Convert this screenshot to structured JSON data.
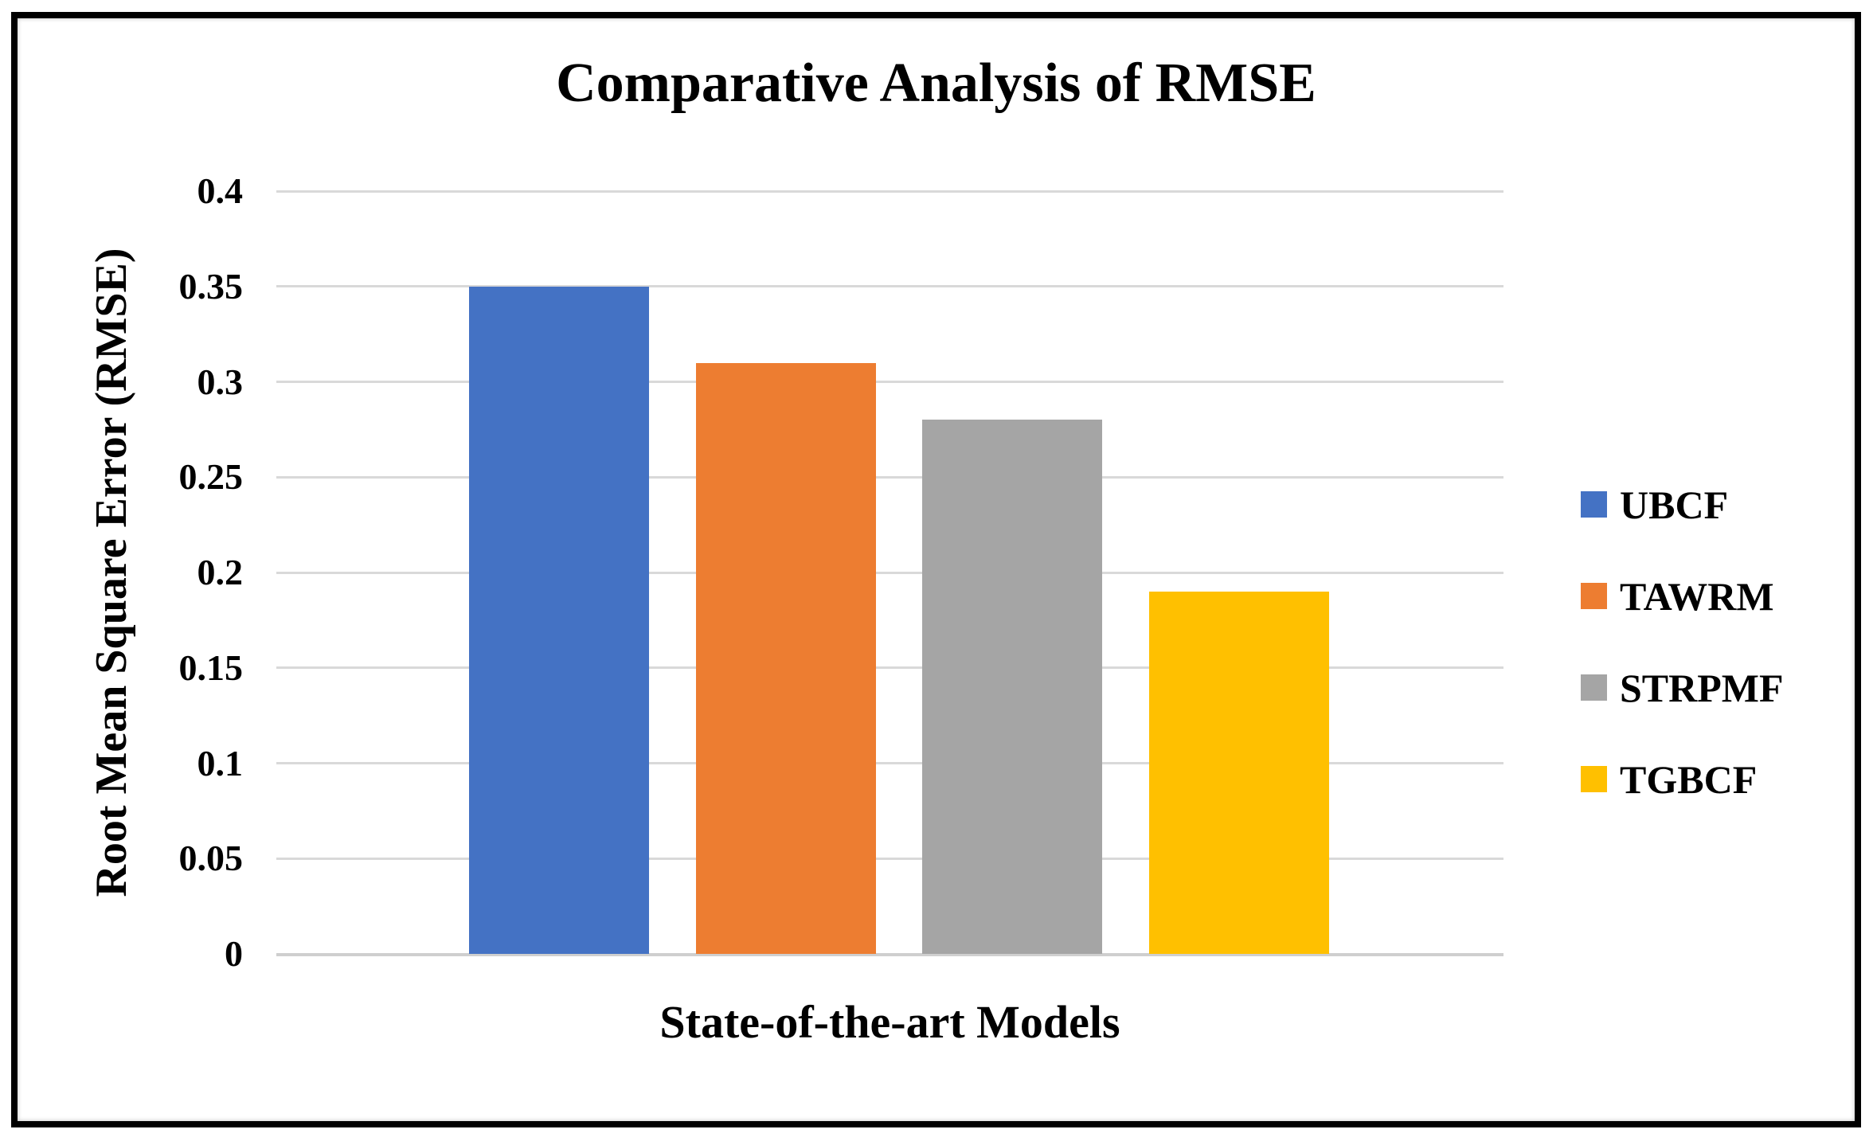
{
  "title": "Comparative Analysis of RMSE",
  "chart_data": {
    "type": "bar",
    "title": "Comparative Analysis of RMSE",
    "xlabel": "State-of-the-art Models",
    "ylabel": "Root Mean Square Error (RMSE)",
    "categories": [
      "UBCF",
      "TAWRM",
      "STRPMF",
      "TGBCF"
    ],
    "values": [
      0.35,
      0.31,
      0.28,
      0.19
    ],
    "series_colors": [
      "#4472C4",
      "#ED7D31",
      "#A5A5A5",
      "#FFC000"
    ],
    "ylim": [
      0,
      0.4
    ],
    "ytick_step": 0.05,
    "ytick_labels": [
      "0",
      "0.05",
      "0.1",
      "0.15",
      "0.2",
      "0.25",
      "0.3",
      "0.35",
      "0.4"
    ],
    "grid": true,
    "legend_position": "right",
    "legend": [
      "UBCF",
      "TAWRM",
      "STRPMF",
      "TGBCF"
    ]
  },
  "colors": {
    "gridline": "#D9D9D9",
    "axis_line": "#CFCFCF",
    "frame": "#000000",
    "background": "#FFFFFF"
  }
}
